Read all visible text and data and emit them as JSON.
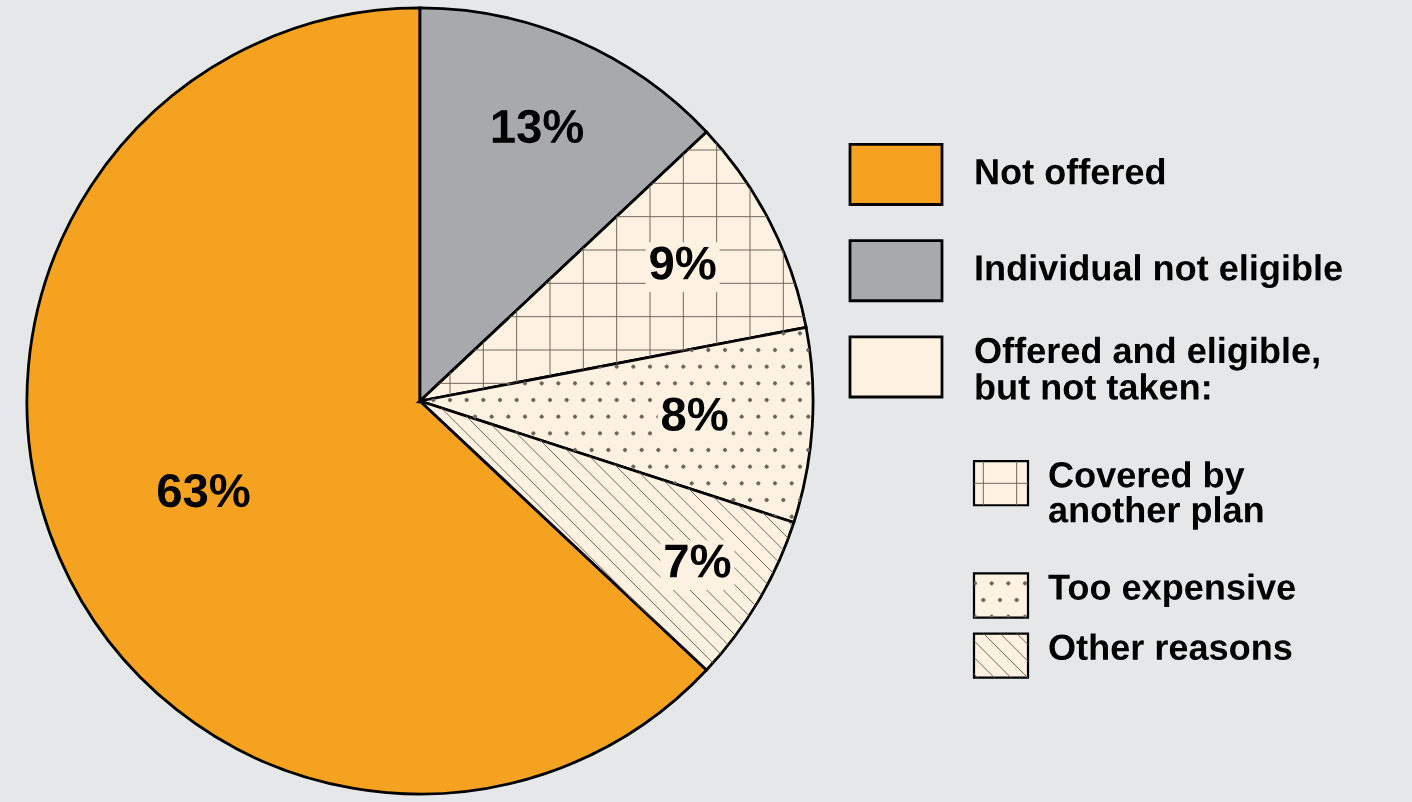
{
  "chart_data": {
    "type": "pie",
    "categories": [
      "Not offered",
      "Individual not eligible",
      "Covered by another plan",
      "Too expensive",
      "Other reasons"
    ],
    "values": [
      63,
      13,
      9,
      8,
      7
    ],
    "colors": [
      "#f4a21f",
      "#a7a9ac",
      "#fdf1e1",
      "#fdf1e1",
      "#fdf1e1"
    ],
    "value_labels": [
      "63%",
      "13%",
      "9%",
      "8%",
      "7%"
    ],
    "annotations": [
      "Offered and eligible,\nbut not taken:"
    ],
    "legend": "right"
  }
}
